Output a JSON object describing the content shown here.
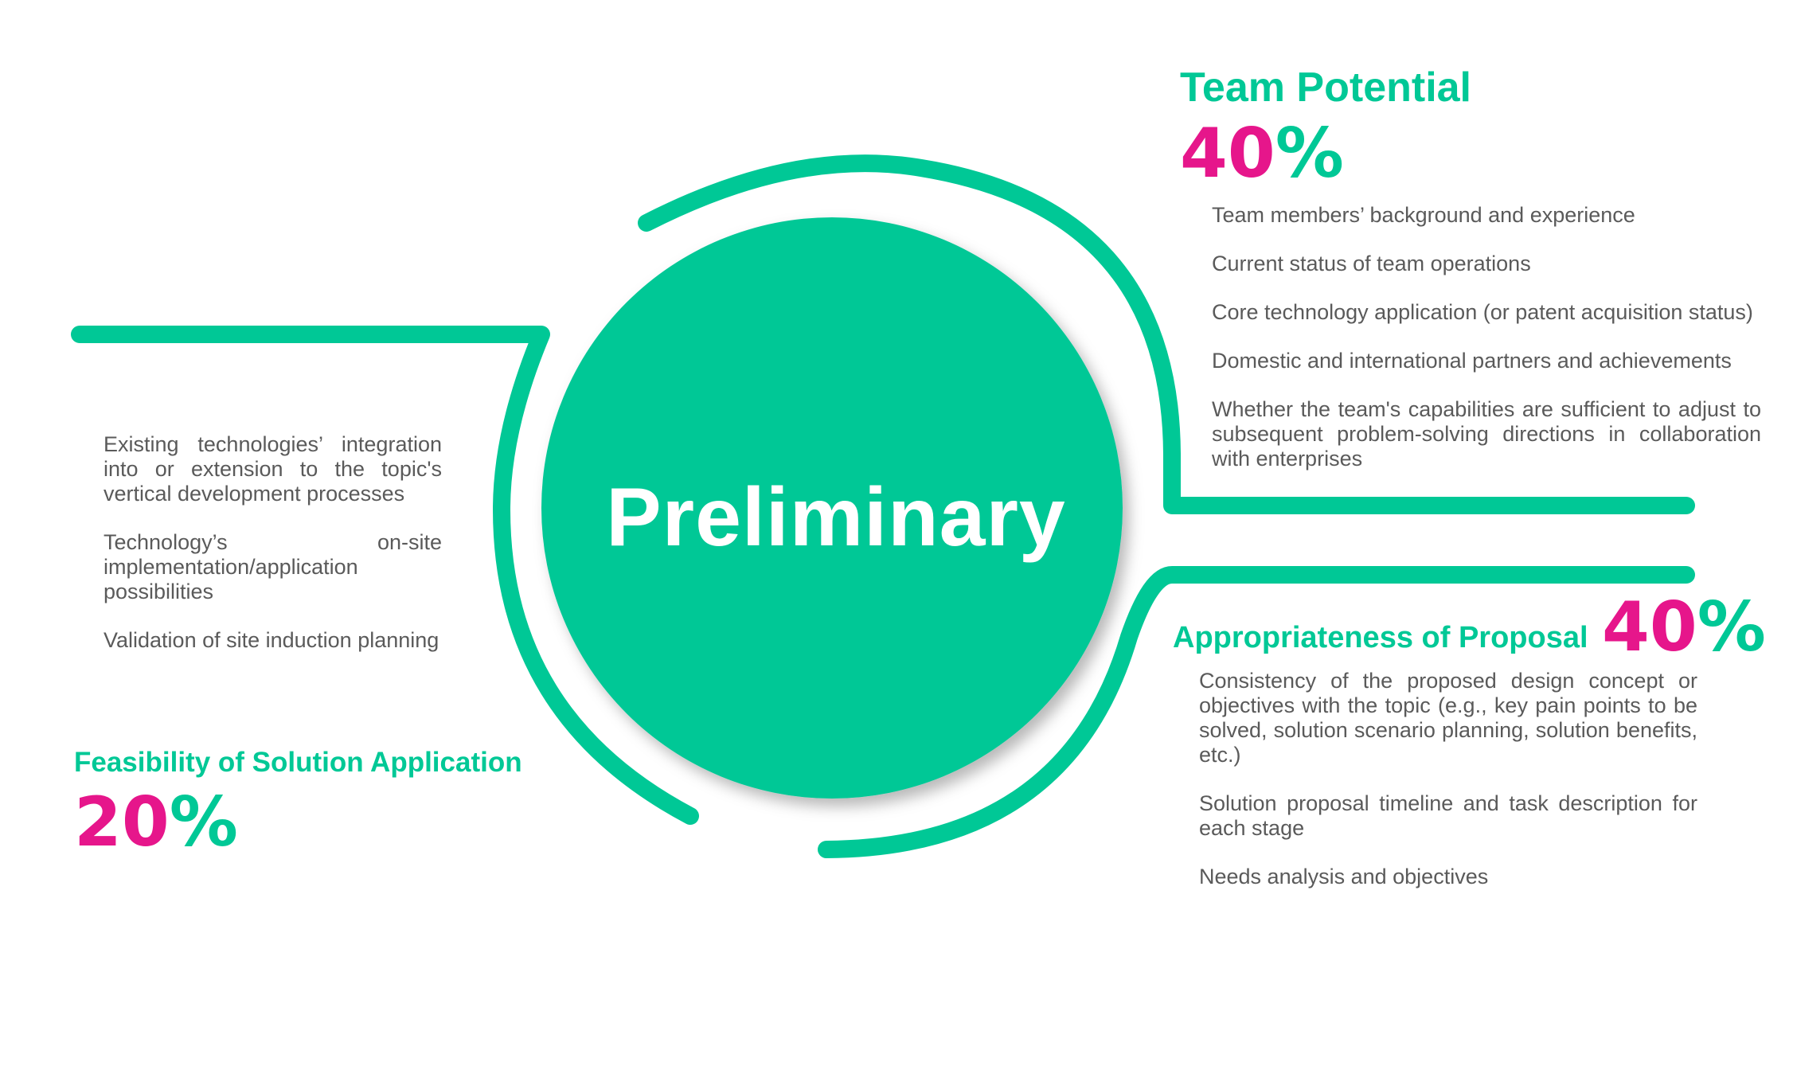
{
  "hub": {
    "label": "Preliminary"
  },
  "sections": {
    "team_potential": {
      "title": "Team Potential",
      "percent": "40",
      "items": [
        "Team members’ background and experience",
        "Current status of team operations",
        "Core technology application (or patent acquisition status)",
        "Domestic and international partners and achievements",
        "Whether the team's capabilities are sufficient to adjust to subsequent problem-solving directions in collaboration with enterprises"
      ]
    },
    "appropriateness": {
      "title": "Appropriateness of Proposal",
      "percent": "40",
      "items": [
        "Consistency of the proposed design concept or objectives with the topic (e.g., key pain points to be solved, solution scenario planning, solution benefits, etc.)",
        "Solution proposal timeline and task description for each stage",
        "Needs analysis and objectives"
      ]
    },
    "feasibility": {
      "title": "Feasibility of Solution Application",
      "percent": "20",
      "items": [
        "Existing technologies’ integration into or extension to the topic's vertical development processes",
        "Technology’s on-site implementation/application possibilities",
        "Validation of site induction planning"
      ]
    }
  },
  "percent_sign": "%",
  "colors": {
    "accent": "#00c896",
    "highlight": "#e6168b",
    "body_text": "#5a5a5a"
  }
}
